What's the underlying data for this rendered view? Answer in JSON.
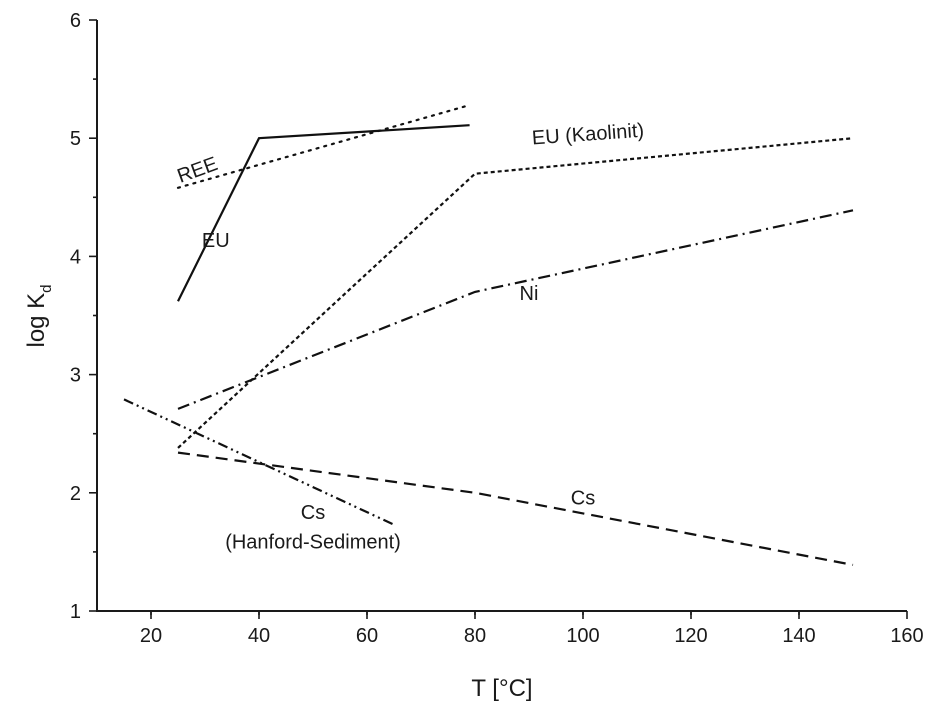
{
  "chart_data": {
    "type": "line",
    "xlabel": "T [°C]",
    "ylabel_main": "log K",
    "ylabel_sub": "d",
    "xlim": [
      10,
      160
    ],
    "ylim": [
      1,
      6
    ],
    "xticks": [
      20,
      40,
      60,
      80,
      100,
      120,
      140,
      160
    ],
    "yticks": [
      1,
      2,
      3,
      4,
      5,
      6
    ],
    "grid": false,
    "series": [
      {
        "name": "EU",
        "style": "solid",
        "x": [
          25,
          40,
          79
        ],
        "y": [
          3.62,
          5.0,
          5.11
        ]
      },
      {
        "name": "REE",
        "style": "dotted",
        "x": [
          25,
          79
        ],
        "y": [
          4.58,
          5.28
        ]
      },
      {
        "name": "EU (Kaolinit)",
        "style": "short-dash",
        "x": [
          25,
          80,
          150
        ],
        "y": [
          2.38,
          4.7,
          5.0
        ]
      },
      {
        "name": "Ni",
        "style": "dash-dot",
        "x": [
          25,
          80,
          150
        ],
        "y": [
          2.71,
          3.7,
          4.39
        ]
      },
      {
        "name": "Cs",
        "style": "dash",
        "x": [
          25,
          80,
          150
        ],
        "y": [
          2.34,
          2.0,
          1.39
        ]
      },
      {
        "name": "Cs (Hanford-Sediment)",
        "style": "dash-dot-dot",
        "x": [
          15,
          65
        ],
        "y": [
          2.79,
          1.73
        ]
      }
    ],
    "annotations": [
      {
        "id": "ree",
        "text": "REE",
        "x": 29,
        "y": 4.68,
        "rotate": -20
      },
      {
        "id": "eu",
        "text": "EU",
        "x": 32,
        "y": 4.08,
        "rotate": 0
      },
      {
        "id": "eu-kaolinit",
        "text": "EU (Kaolinit)",
        "x": 101,
        "y": 4.98,
        "rotate": -4
      },
      {
        "id": "ni",
        "text": "Ni",
        "x": 90,
        "y": 3.63,
        "rotate": 0
      },
      {
        "id": "cs",
        "text": "Cs",
        "x": 100,
        "y": 1.9,
        "rotate": 0
      },
      {
        "id": "cs-hanford-1",
        "text": "Cs",
        "x": 50,
        "y": 1.78,
        "rotate": 0
      },
      {
        "id": "cs-hanford-2",
        "text": "(Hanford-Sediment)",
        "x": 50,
        "y": 1.53,
        "rotate": 0
      }
    ]
  }
}
